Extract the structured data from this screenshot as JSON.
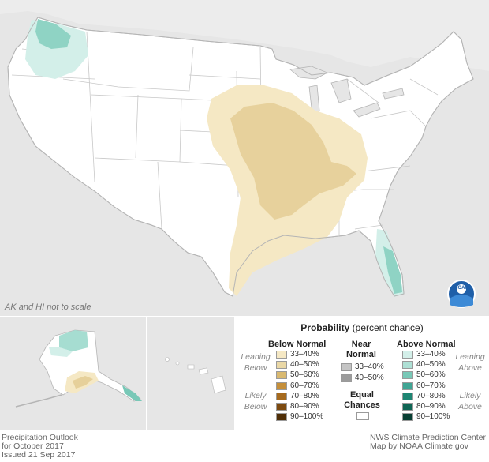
{
  "note": "AK and HI not to scale",
  "legend": {
    "title": "Probability",
    "subtitle": "(percent chance)",
    "below_header": "Below Normal",
    "near_header_1": "Near",
    "near_header_2": "Normal",
    "above_header": "Above Normal",
    "leaning_below": [
      "Leaning",
      "Below"
    ],
    "likely_below": [
      "Likely",
      "Below"
    ],
    "leaning_above": [
      "Leaning",
      "Above"
    ],
    "likely_above": [
      "Likely",
      "Above"
    ],
    "equal_1": "Equal",
    "equal_2": "Chances",
    "below": [
      {
        "label": "33–40%",
        "color": "#f5e8c4"
      },
      {
        "label": "40–50%",
        "color": "#ead8a6"
      },
      {
        "label": "50–60%",
        "color": "#d9b970"
      },
      {
        "label": "60–70%",
        "color": "#c58f3a"
      },
      {
        "label": "70–80%",
        "color": "#a66a1e"
      },
      {
        "label": "80–90%",
        "color": "#7c4a10"
      },
      {
        "label": "90–100%",
        "color": "#4f2e07"
      }
    ],
    "near": [
      {
        "label": "33–40%",
        "color": "#c4c4c4"
      },
      {
        "label": "40–50%",
        "color": "#9c9c9c"
      }
    ],
    "above": [
      {
        "label": "33–40%",
        "color": "#d3efe9"
      },
      {
        "label": "40–50%",
        "color": "#aee0d5"
      },
      {
        "label": "50–60%",
        "color": "#78c8b7"
      },
      {
        "label": "60–70%",
        "color": "#3fa594"
      },
      {
        "label": "70–80%",
        "color": "#1e8673"
      },
      {
        "label": "80–90%",
        "color": "#0f6655"
      },
      {
        "label": "90–100%",
        "color": "#083f33"
      }
    ]
  },
  "footer_left": [
    "Precipitation Outlook",
    "for October 2017",
    "Issued 21 Sep 2017"
  ],
  "footer_right": [
    "NWS Climate Prediction Center",
    "Map by NOAA Climate.gov"
  ],
  "logo_text": "NOAA",
  "colors": {
    "land": "#ffffff",
    "outside": "#e6e6e6",
    "border": "#b5b5b5",
    "below_33_40": "#f5e8c4",
    "below_40_50": "#e6d09a",
    "above_33_40": "#d3efe9",
    "above_40_50": "#a6ddd1"
  }
}
